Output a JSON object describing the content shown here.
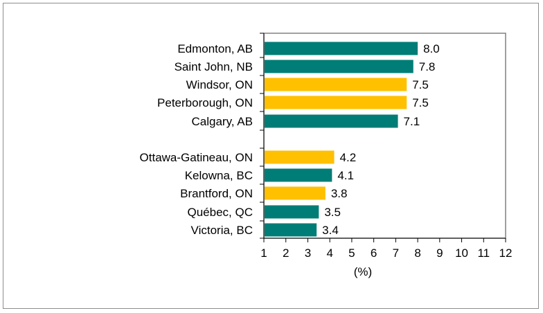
{
  "chart_data": {
    "type": "bar",
    "orientation": "horizontal",
    "xlabel": "(%)",
    "xlim": [
      1,
      12
    ],
    "x_ticks": [
      "1",
      "2",
      "3",
      "4",
      "5",
      "6",
      "7",
      "8",
      "9",
      "10",
      "11",
      "12"
    ],
    "grid": false,
    "colors": {
      "teal": "#007d76",
      "gold": "#ffc000"
    },
    "bars": [
      {
        "category": "Edmonton, AB",
        "value": 8.0,
        "label": "8.0",
        "color": "teal"
      },
      {
        "category": "Saint John, NB",
        "value": 7.8,
        "label": "7.8",
        "color": "teal"
      },
      {
        "category": "Windsor, ON",
        "value": 7.5,
        "label": "7.5",
        "color": "gold"
      },
      {
        "category": "Peterborough, ON",
        "value": 7.5,
        "label": "7.5",
        "color": "gold"
      },
      {
        "category": "Calgary, AB",
        "value": 7.1,
        "label": "7.1",
        "color": "teal"
      },
      {
        "category": "Ottawa-Gatineau, ON",
        "value": 4.2,
        "label": "4.2",
        "color": "gold"
      },
      {
        "category": "Kelowna, BC",
        "value": 4.1,
        "label": "4.1",
        "color": "teal"
      },
      {
        "category": "Brantford, ON",
        "value": 3.8,
        "label": "3.8",
        "color": "gold"
      },
      {
        "category": "Québec, QC",
        "value": 3.5,
        "label": "3.5",
        "color": "teal"
      },
      {
        "category": "Victoria, BC",
        "value": 3.4,
        "label": "3.4",
        "color": "teal"
      }
    ]
  }
}
